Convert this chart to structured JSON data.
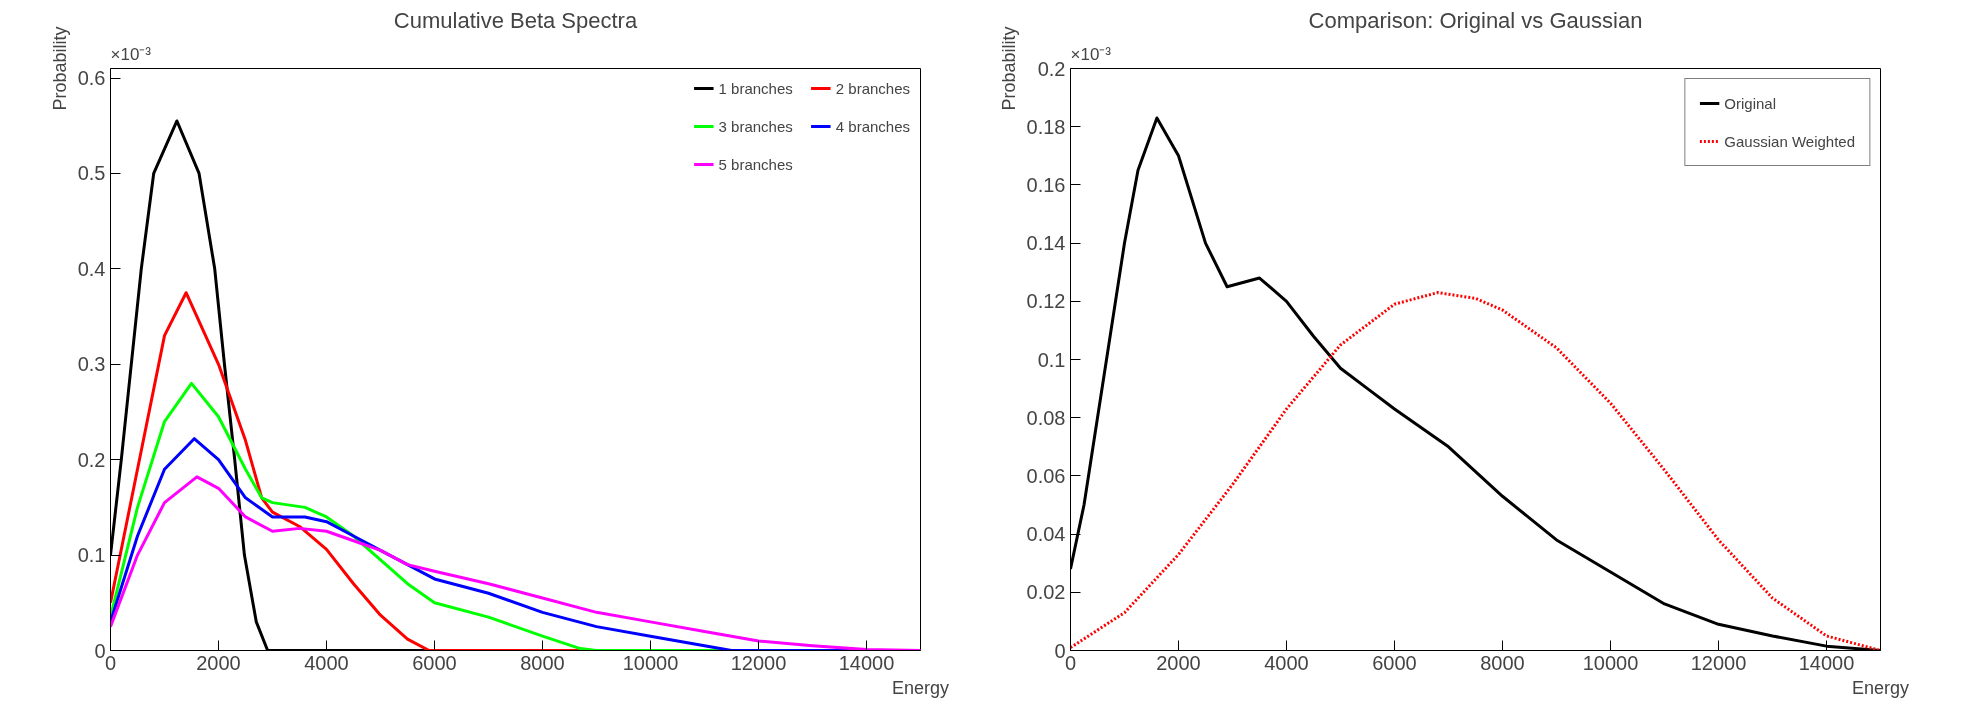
{
  "chart_data": [
    {
      "type": "line",
      "title": "Cumulative Beta Spectra",
      "xlabel": "Energy",
      "ylabel": "Probability",
      "annotations": [
        "×10⁻³"
      ],
      "xlim": [
        0,
        15000
      ],
      "ylim": [
        0,
        0.61
      ],
      "xticks": [
        0,
        2000,
        4000,
        6000,
        8000,
        10000,
        12000,
        14000
      ],
      "yticks": [
        0,
        0.1,
        0.2,
        0.3,
        0.4,
        0.5,
        0.6
      ],
      "grid": false,
      "legend": "top right",
      "line_style": "solid",
      "marker": "none",
      "series": [
        {
          "name": "1 branches",
          "color": "#000000",
          "x": [
            0,
            200,
            570,
            800,
            1230,
            1640,
            1930,
            2110,
            2300,
            2480,
            2700,
            2910,
            15000
          ],
          "values": [
            0.1,
            0.2,
            0.4,
            0.5,
            0.555,
            0.5,
            0.4,
            0.3,
            0.2,
            0.1,
            0.03,
            0,
            0
          ]
        },
        {
          "name": "2 branches",
          "color": "#ff0000",
          "x": [
            0,
            500,
            1000,
            1400,
            2000,
            2500,
            2800,
            3000,
            3500,
            4000,
            4500,
            5000,
            5500,
            5900,
            15000
          ],
          "values": [
            0.05,
            0.19,
            0.33,
            0.375,
            0.3,
            0.22,
            0.16,
            0.145,
            0.13,
            0.106,
            0.07,
            0.037,
            0.012,
            0,
            0
          ]
        },
        {
          "name": "3 branches",
          "color": "#00ff00",
          "x": [
            0,
            500,
            1000,
            1500,
            2000,
            2500,
            2800,
            3000,
            3600,
            4000,
            4500,
            5000,
            5500,
            6000,
            7000,
            8000,
            8700,
            9000,
            15000
          ],
          "values": [
            0.035,
            0.15,
            0.24,
            0.28,
            0.245,
            0.19,
            0.16,
            0.155,
            0.15,
            0.14,
            0.12,
            0.095,
            0.07,
            0.05,
            0.035,
            0.015,
            0.002,
            0,
            0
          ]
        },
        {
          "name": "4 branches",
          "color": "#0000ff",
          "x": [
            0,
            500,
            1000,
            1550,
            2000,
            2500,
            3000,
            3600,
            4000,
            4500,
            5000,
            5500,
            6000,
            7000,
            8000,
            9000,
            10000,
            11000,
            11500,
            15000
          ],
          "values": [
            0.03,
            0.12,
            0.19,
            0.222,
            0.2,
            0.16,
            0.14,
            0.14,
            0.135,
            0.12,
            0.105,
            0.09,
            0.075,
            0.06,
            0.04,
            0.025,
            0.015,
            0.005,
            0,
            0
          ]
        },
        {
          "name": "5 branches",
          "color": "#ff00ff",
          "x": [
            0,
            500,
            1000,
            1600,
            2000,
            2500,
            3000,
            3500,
            4000,
            4500,
            5000,
            5500,
            6000,
            7000,
            8000,
            9000,
            10000,
            11000,
            12000,
            13000,
            14000,
            15000
          ],
          "values": [
            0.025,
            0.1,
            0.155,
            0.182,
            0.17,
            0.14,
            0.125,
            0.128,
            0.125,
            0.115,
            0.105,
            0.09,
            0.083,
            0.07,
            0.055,
            0.04,
            0.03,
            0.02,
            0.01,
            0.005,
            0.001,
            0
          ]
        }
      ]
    },
    {
      "type": "line",
      "title": "Comparison: Original vs Gaussian",
      "xlabel": "Energy",
      "ylabel": "Probability",
      "annotations": [
        "×10⁻³"
      ],
      "xlim": [
        0,
        15000
      ],
      "ylim": [
        0,
        0.2
      ],
      "xticks": [
        0,
        2000,
        4000,
        6000,
        8000,
        10000,
        12000,
        14000
      ],
      "yticks": [
        0,
        0.02,
        0.04,
        0.06,
        0.08,
        0.1,
        0.12,
        0.14,
        0.16,
        0.18,
        0.2
      ],
      "grid": false,
      "legend": "top right",
      "marker": "none",
      "series": [
        {
          "name": "Original",
          "color": "#000000",
          "line_style": "solid",
          "x": [
            0,
            250,
            500,
            750,
            1000,
            1250,
            1600,
            2000,
            2500,
            2900,
            3500,
            4000,
            4500,
            5000,
            5500,
            6000,
            7000,
            8000,
            9000,
            10000,
            11000,
            12000,
            13000,
            14000,
            15000
          ],
          "values": [
            0.028,
            0.05,
            0.08,
            0.11,
            0.14,
            0.165,
            0.183,
            0.17,
            0.14,
            0.125,
            0.128,
            0.12,
            0.108,
            0.097,
            0.09,
            0.083,
            0.07,
            0.053,
            0.038,
            0.027,
            0.016,
            0.009,
            0.005,
            0.0015,
            0
          ]
        },
        {
          "name": "Gaussian Weighted",
          "color": "#ff0000",
          "line_style": "dotted",
          "x": [
            0,
            1000,
            2000,
            3000,
            4000,
            5000,
            6000,
            6800,
            7500,
            8000,
            9000,
            10000,
            11000,
            12000,
            13000,
            14000,
            15000
          ],
          "values": [
            0.001,
            0.013,
            0.033,
            0.057,
            0.083,
            0.105,
            0.119,
            0.123,
            0.121,
            0.117,
            0.104,
            0.085,
            0.062,
            0.038,
            0.018,
            0.005,
            0
          ]
        }
      ]
    }
  ]
}
